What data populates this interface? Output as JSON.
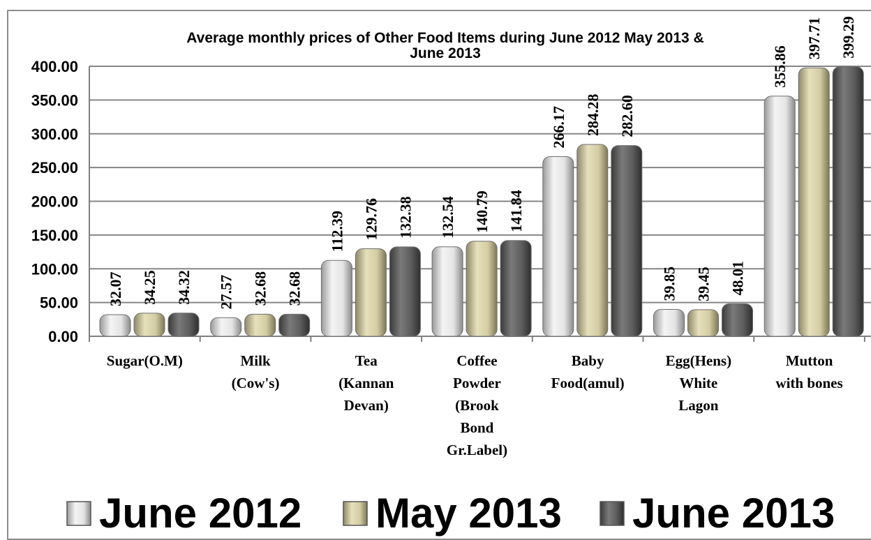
{
  "chart_data": {
    "type": "bar",
    "title": "Average monthly prices of Other Food Items during  June  2012 May 2013 &\nJune 2013",
    "categories": [
      "Sugar(O.M)",
      "Milk\n(Cow's)",
      "Tea\n(Kannan\nDevan)",
      "Coffee\nPowder\n(Brook\nBond\nGr.Label)",
      "Baby\nFood(amul)",
      "Egg(Hens)\nWhite\nLagon",
      "Mutton\nwith  bones"
    ],
    "series": [
      {
        "name": "June 2012",
        "values": [
          32.07,
          27.57,
          112.39,
          132.54,
          266.17,
          39.85,
          355.86
        ],
        "color": "#e6e6e6"
      },
      {
        "name": "May 2013",
        "values": [
          34.25,
          32.68,
          129.76,
          140.79,
          284.28,
          39.45,
          397.71
        ],
        "color": "#d8d2ab"
      },
      {
        "name": "June 2013",
        "values": [
          34.32,
          32.68,
          132.38,
          141.84,
          282.6,
          48.01,
          399.29
        ],
        "color": "#5f5f5f"
      }
    ],
    "data_labels": [
      [
        "32.07",
        "27.57",
        "112.39",
        "132.54",
        "266.17",
        "39.85",
        "355.86"
      ],
      [
        "34.25",
        "32.68",
        "129.76",
        "140.79",
        "284.28",
        "39.45",
        "397.71"
      ],
      [
        "34.32",
        "32.68",
        "132.38",
        "141.84",
        "282.60",
        "48.01",
        "399.29"
      ]
    ],
    "yticks": [
      "0.00",
      "50.00",
      "100.00",
      "150.00",
      "200.00",
      "250.00",
      "300.00",
      "350.00",
      "400.00"
    ],
    "ylim": [
      0,
      400
    ],
    "grid": true,
    "legend_position": "bottom"
  }
}
